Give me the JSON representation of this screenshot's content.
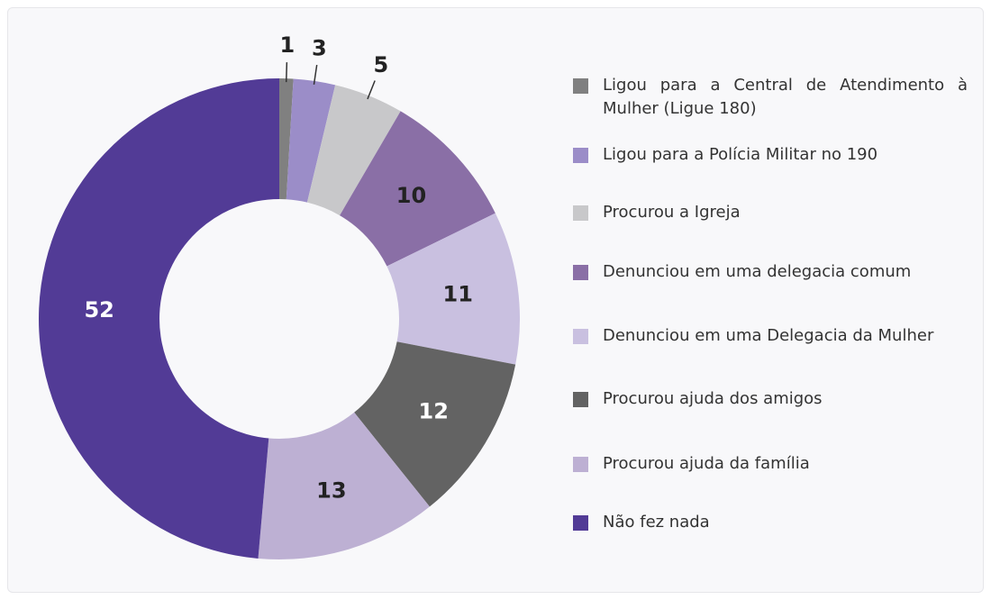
{
  "chart_data": {
    "type": "pie",
    "donut": true,
    "categories": [
      "Ligou para a Central de Atendimento à Mulher (Ligue 180)",
      "Ligou para a Polícia Militar no 190",
      "Procurou a Igreja",
      "Denunciou em uma delegacia comum",
      "Denunciou em uma Delegacia da Mulher",
      "Procurou ajuda dos amigos",
      "Procurou ajuda da família",
      "Não fez nada"
    ],
    "values": [
      1,
      3,
      5,
      10,
      11,
      12,
      13,
      52
    ],
    "colors": [
      "#808080",
      "#9b8dc8",
      "#c8c8ca",
      "#8a6fa6",
      "#c9c0e0",
      "#636363",
      "#bdb0d3",
      "#523b96"
    ],
    "legend": "right"
  }
}
